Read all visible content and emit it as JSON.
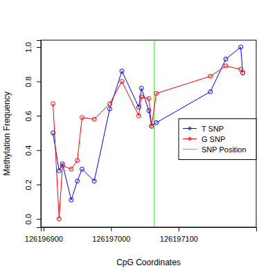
{
  "chart_data": {
    "type": "line",
    "x_label": "CpG Coordinates",
    "y_label": "Methylation Frequency",
    "x": [
      126196914,
      126196923,
      126196928,
      126196941,
      126196950,
      126196957,
      126196975,
      126196998,
      126197016,
      126197041,
      126197045,
      126197056,
      126197060,
      126197067,
      126197147,
      126197170,
      126197192,
      126197195
    ],
    "series": [
      {
        "name": "T SNP",
        "color": "#0000ff",
        "marker": "circle",
        "line_style": "solid",
        "values": [
          0.5,
          0.28,
          0.32,
          0.11,
          0.22,
          0.29,
          0.22,
          0.64,
          0.86,
          0.65,
          0.76,
          0.63,
          0.54,
          0.56,
          0.74,
          0.93,
          1.0,
          0.85
        ]
      },
      {
        "name": "G SNP",
        "color": "#ff0000",
        "marker": "circle",
        "line_style": "solid",
        "values": [
          0.67,
          0.0,
          0.31,
          0.29,
          0.34,
          0.59,
          0.58,
          0.67,
          0.8,
          0.6,
          0.71,
          0.7,
          0.54,
          0.73,
          0.83,
          0.89,
          0.87,
          0.85
        ]
      }
    ],
    "vlines": [
      {
        "name": "SNP Position",
        "x": 126197064,
        "color": "#33dd33"
      }
    ],
    "xlim": [
      126196896,
      126197215
    ],
    "ylim": [
      -0.048,
      1.04
    ],
    "xticks": [
      126196900,
      126197000,
      126197100
    ],
    "yticks": [
      {
        "value": 0,
        "label": "0.0"
      },
      0.2,
      0.4,
      0.6,
      0.8,
      {
        "value": 1,
        "label": "1.0"
      }
    ],
    "legend": "right",
    "grid": false
  }
}
